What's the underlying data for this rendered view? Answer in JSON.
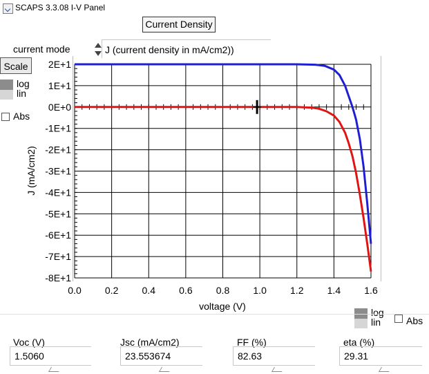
{
  "window": {
    "title": "SCAPS 3.3.08 I-V Panel"
  },
  "header": {
    "mode_button_label": "Current Density"
  },
  "mode": {
    "label": "current mode",
    "value": "J (current density in mA/cm2))"
  },
  "left_controls": {
    "scale_label": "Scale",
    "log_label": "log",
    "lin_label": "lin",
    "abs_label": "Abs"
  },
  "bottom_controls": {
    "log_label": "log",
    "lin_label": "lin",
    "abs_label": "Abs"
  },
  "results": [
    {
      "label": "Voc (V)",
      "value": "1.5060"
    },
    {
      "label": "Jsc (mA/cm2)",
      "value": "23.553674"
    },
    {
      "label": "FF  (%)",
      "value": "82.63"
    },
    {
      "label": "eta (%)",
      "value": "29.31"
    }
  ],
  "colors": {
    "blue_curve": "#1f1fd2",
    "red_curve": "#e01414"
  },
  "chart_data": {
    "type": "line",
    "xlabel": "voltage (V)",
    "ylabel": "J (mA/cm2)",
    "xlim": [
      0,
      1.6
    ],
    "ylim": [
      -80,
      20
    ],
    "x_ticks": [
      0,
      0.2,
      0.4,
      0.6,
      0.8,
      1.0,
      1.2,
      1.4,
      1.6
    ],
    "x_tick_labels": [
      "0.0",
      "0.2",
      "0.4",
      "0.6",
      "0.8",
      "1.0",
      "1.2",
      "1.4",
      "1.6"
    ],
    "y_ticks": [
      20,
      10,
      0,
      -10,
      -20,
      -30,
      -40,
      -50,
      -60,
      -70,
      -80
    ],
    "y_tick_labels": [
      "2E+1",
      "1E+1",
      "0E+0",
      "-1E+1",
      "-2E+1",
      "-3E+1",
      "-4E+1",
      "-5E+1",
      "-6E+1",
      "-7E+1",
      "-8E+1"
    ],
    "grid": true,
    "series": [
      {
        "color": "#1f1fd2",
        "x": [
          0,
          1.2,
          1.3,
          1.35,
          1.4,
          1.43,
          1.46,
          1.48,
          1.5,
          1.51,
          1.52,
          1.54,
          1.56,
          1.58,
          1.6
        ],
        "y": [
          20,
          20,
          19.8,
          19.3,
          17.5,
          15,
          10,
          5,
          0,
          -3,
          -6,
          -15,
          -28,
          -45,
          -64
        ]
      },
      {
        "color": "#e01414",
        "x": [
          0,
          1.2,
          1.28,
          1.32,
          1.36,
          1.4,
          1.43,
          1.46,
          1.48,
          1.5,
          1.52,
          1.54,
          1.56,
          1.58,
          1.6
        ],
        "y": [
          0,
          0,
          -0.3,
          -0.8,
          -2,
          -4,
          -7,
          -12,
          -17,
          -23,
          -31,
          -41,
          -52,
          -64,
          -77
        ]
      }
    ],
    "cursor": {
      "x": 0.985,
      "y": 0
    }
  }
}
